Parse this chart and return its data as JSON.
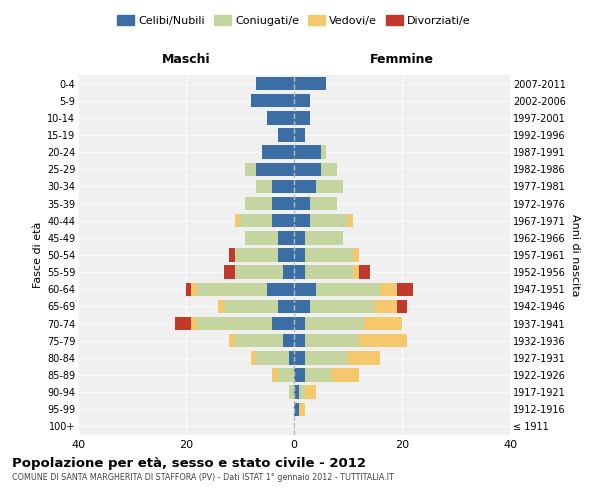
{
  "age_groups": [
    "100+",
    "95-99",
    "90-94",
    "85-89",
    "80-84",
    "75-79",
    "70-74",
    "65-69",
    "60-64",
    "55-59",
    "50-54",
    "45-49",
    "40-44",
    "35-39",
    "30-34",
    "25-29",
    "20-24",
    "15-19",
    "10-14",
    "5-9",
    "0-4"
  ],
  "birth_years": [
    "≤ 1911",
    "1912-1916",
    "1917-1921",
    "1922-1926",
    "1927-1931",
    "1932-1936",
    "1937-1941",
    "1942-1946",
    "1947-1951",
    "1952-1956",
    "1957-1961",
    "1962-1966",
    "1967-1971",
    "1972-1976",
    "1977-1981",
    "1982-1986",
    "1987-1991",
    "1992-1996",
    "1997-2001",
    "2002-2006",
    "2007-2011"
  ],
  "colors": {
    "celibi": "#3A6EA5",
    "coniugati": "#C5D5A0",
    "vedovi": "#F5C96B",
    "divorziati": "#C0392B"
  },
  "maschi": {
    "celibi": [
      0,
      0,
      0,
      0,
      1,
      2,
      4,
      3,
      5,
      2,
      3,
      3,
      4,
      4,
      4,
      7,
      6,
      3,
      5,
      8,
      7
    ],
    "coniugati": [
      0,
      0,
      1,
      3,
      6,
      9,
      14,
      10,
      13,
      9,
      8,
      6,
      6,
      5,
      3,
      2,
      0,
      0,
      0,
      0,
      0
    ],
    "vedovi": [
      0,
      0,
      0,
      1,
      1,
      1,
      1,
      1,
      1,
      0,
      0,
      0,
      1,
      0,
      0,
      0,
      0,
      0,
      0,
      0,
      0
    ],
    "divorziati": [
      0,
      0,
      0,
      0,
      0,
      0,
      3,
      0,
      1,
      2,
      1,
      0,
      0,
      0,
      0,
      0,
      0,
      0,
      0,
      0,
      0
    ]
  },
  "femmine": {
    "celibi": [
      0,
      1,
      1,
      2,
      2,
      2,
      2,
      3,
      4,
      2,
      2,
      2,
      3,
      3,
      4,
      5,
      5,
      2,
      3,
      3,
      6
    ],
    "coniugati": [
      0,
      0,
      1,
      5,
      8,
      10,
      11,
      12,
      12,
      9,
      9,
      7,
      7,
      5,
      5,
      3,
      1,
      0,
      0,
      0,
      0
    ],
    "vedovi": [
      0,
      1,
      2,
      5,
      6,
      9,
      7,
      4,
      3,
      1,
      1,
      0,
      1,
      0,
      0,
      0,
      0,
      0,
      0,
      0,
      0
    ],
    "divorziati": [
      0,
      0,
      0,
      0,
      0,
      0,
      0,
      2,
      3,
      2,
      0,
      0,
      0,
      0,
      0,
      0,
      0,
      0,
      0,
      0,
      0
    ]
  },
  "xlim": 40,
  "title": "Popolazione per età, sesso e stato civile - 2012",
  "subtitle": "COMUNE DI SANTA MARGHERITA DI STAFFORA (PV) - Dati ISTAT 1° gennaio 2012 - TUTTITALIA.IT",
  "xlabel_left": "Maschi",
  "xlabel_right": "Femmine",
  "ylabel": "Fasce di età",
  "ylabel_right": "Anni di nascita",
  "bg_color": "#FFFFFF",
  "plot_bg_color": "#F0F0F0"
}
